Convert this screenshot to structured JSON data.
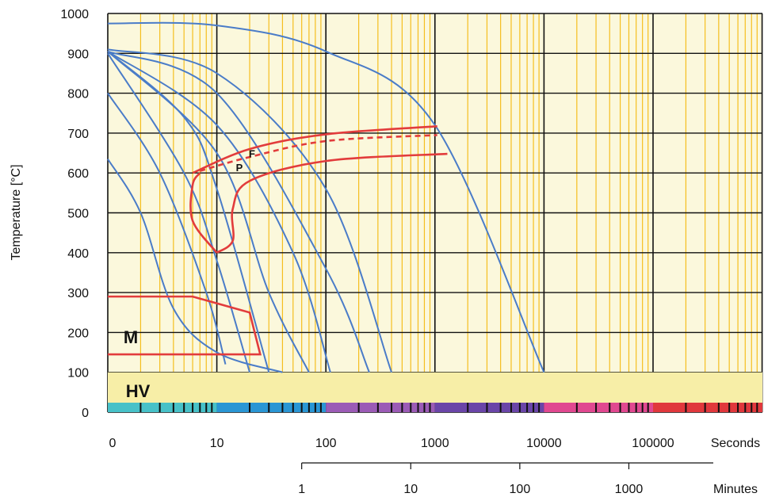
{
  "chart_data": {
    "type": "line",
    "title": "",
    "ylabel": "Temperature [°C]",
    "ylim": [
      0,
      1000
    ],
    "y_ticks": [
      "0",
      "100",
      "200",
      "300",
      "400",
      "500",
      "600",
      "700",
      "800",
      "900",
      "1000"
    ],
    "x_scale": "log",
    "x_seconds_ticks": [
      "0",
      "10",
      "100",
      "1000",
      "10000",
      "100000"
    ],
    "x_seconds_label": "Seconds",
    "x_minutes_ticks": [
      "1",
      "10",
      "100",
      "1000"
    ],
    "x_minutes_label": "Minutes",
    "grid": true,
    "regions": [
      {
        "label": "M",
        "text_temp": 190
      },
      {
        "label": "HV",
        "text_temp": 55
      },
      {
        "label": "P",
        "text_temp": 615
      },
      {
        "label": "F",
        "text_temp": 650
      }
    ],
    "cooling_curves_seconds_temp": [
      [
        [
          1,
          975
        ],
        [
          10,
          970
        ],
        [
          100,
          905
        ],
        [
          1000,
          720
        ],
        [
          10000,
          100
        ]
      ],
      [
        [
          1,
          910
        ],
        [
          10,
          850
        ],
        [
          100,
          560
        ],
        [
          400,
          100
        ]
      ],
      [
        [
          1,
          905
        ],
        [
          10,
          800
        ],
        [
          100,
          360
        ],
        [
          250,
          100
        ]
      ],
      [
        [
          1,
          905
        ],
        [
          10,
          720
        ],
        [
          50,
          400
        ],
        [
          110,
          100
        ]
      ],
      [
        [
          1,
          905
        ],
        [
          10,
          650
        ],
        [
          30,
          300
        ],
        [
          70,
          100
        ]
      ],
      [
        [
          1,
          905
        ],
        [
          5,
          740
        ],
        [
          10,
          560
        ],
        [
          30,
          100
        ]
      ],
      [
        [
          1,
          900
        ],
        [
          5,
          600
        ],
        [
          10,
          380
        ],
        [
          20,
          100
        ]
      ],
      [
        [
          1,
          800
        ],
        [
          3,
          600
        ],
        [
          8,
          300
        ],
        [
          12,
          120
        ]
      ],
      [
        [
          1,
          635
        ],
        [
          2,
          500
        ],
        [
          4,
          260
        ],
        [
          10,
          150
        ],
        [
          40,
          100
        ]
      ]
    ],
    "transformation_lines_seconds_temp": [
      {
        "name": "F",
        "points": [
          [
            6,
            600
          ],
          [
            20,
            660
          ],
          [
            100,
            697
          ],
          [
            1050,
            717
          ]
        ]
      },
      {
        "name": "P",
        "points": [
          [
            7,
            605
          ],
          [
            20,
            640
          ],
          [
            100,
            680
          ],
          [
            1050,
            695
          ]
        ]
      },
      {
        "name": "",
        "points": [
          [
            10,
            400
          ],
          [
            6,
            480
          ],
          [
            6,
            570
          ],
          [
            7,
            600
          ]
        ]
      },
      {
        "name": "",
        "points": [
          [
            10,
            400
          ],
          [
            14,
            430
          ],
          [
            14,
            510
          ],
          [
            20,
            580
          ],
          [
            100,
            630
          ],
          [
            1300,
            648
          ]
        ]
      },
      {
        "name": "M",
        "points": [
          [
            1,
            290
          ],
          [
            6,
            290
          ],
          [
            20,
            250
          ],
          [
            25,
            145
          ],
          [
            1,
            145
          ]
        ]
      }
    ],
    "colors": {
      "plot_bg": "#fbf8dc",
      "hv_band": "#f7eea7",
      "major_grid": "#111111",
      "minor_grid": "#f5be1e",
      "cooling_curve": "#4a7cc8",
      "transformation_line": "#e23c3c",
      "time_bar": [
        "#47c1c8",
        "#2a96d4",
        "#9b5bb6",
        "#6a45a8",
        "#e04890",
        "#e0383c"
      ]
    }
  }
}
